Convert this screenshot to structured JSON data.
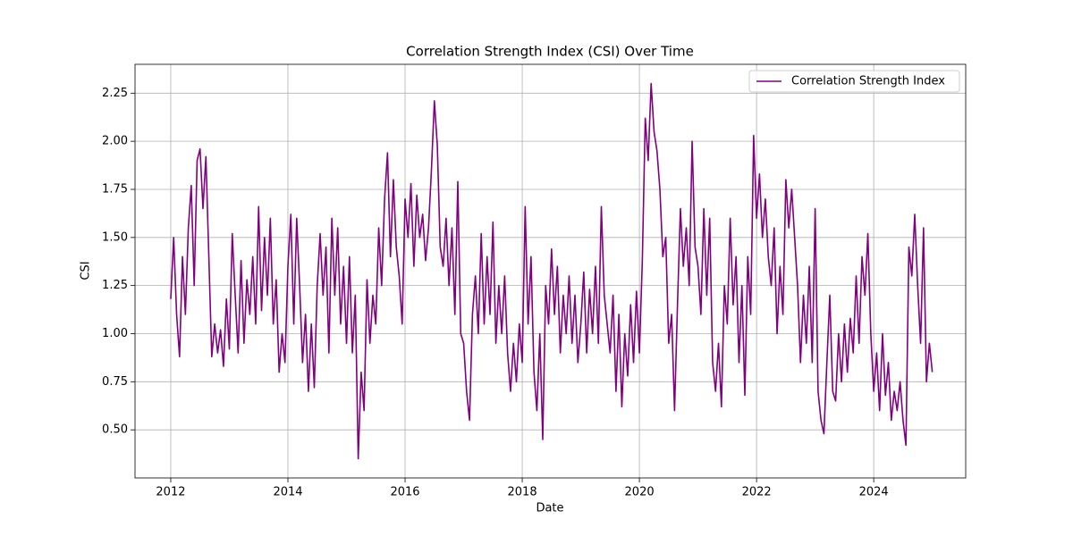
{
  "chart_data": {
    "type": "line",
    "title": "Correlation Strength Index (CSI) Over Time",
    "x_label": "Date",
    "y_label": "CSI",
    "xlim": [
      2011.39,
      2025.57
    ],
    "ylim": [
      0.25,
      2.4
    ],
    "xticks": [
      2012,
      2014,
      2016,
      2018,
      2020,
      2022,
      2024
    ],
    "yticks": [
      {
        "value": 0.5,
        "label": "0.50"
      },
      {
        "value": 0.75,
        "label": "0.75"
      },
      {
        "value": 1.0,
        "label": "1.00"
      },
      {
        "value": 1.25,
        "label": "1.25"
      },
      {
        "value": 1.5,
        "label": "1.50"
      },
      {
        "value": 1.75,
        "label": "1.75"
      },
      {
        "value": 2.0,
        "label": "2.00"
      },
      {
        "value": 2.25,
        "label": "2.25"
      }
    ],
    "grid": true,
    "legend": "upper right",
    "x": [
      2012.0,
      2012.05,
      2012.1,
      2012.15,
      2012.2,
      2012.25,
      2012.3,
      2012.35,
      2012.4,
      2012.45,
      2012.5,
      2012.55,
      2012.6,
      2012.65,
      2012.7,
      2012.75,
      2012.8,
      2012.85,
      2012.9,
      2012.95,
      2013.0,
      2013.05,
      2013.1,
      2013.15,
      2013.2,
      2013.25,
      2013.3,
      2013.35,
      2013.4,
      2013.45,
      2013.5,
      2013.55,
      2013.6,
      2013.65,
      2013.7,
      2013.75,
      2013.8,
      2013.85,
      2013.9,
      2013.95,
      2014.0,
      2014.05,
      2014.1,
      2014.15,
      2014.2,
      2014.25,
      2014.3,
      2014.35,
      2014.4,
      2014.45,
      2014.5,
      2014.55,
      2014.6,
      2014.65,
      2014.7,
      2014.75,
      2014.8,
      2014.85,
      2014.9,
      2014.95,
      2015.0,
      2015.05,
      2015.1,
      2015.15,
      2015.2,
      2015.25,
      2015.3,
      2015.35,
      2015.4,
      2015.45,
      2015.5,
      2015.55,
      2015.6,
      2015.65,
      2015.7,
      2015.75,
      2015.8,
      2015.85,
      2015.9,
      2015.95,
      2016.0,
      2016.05,
      2016.1,
      2016.15,
      2016.2,
      2016.25,
      2016.3,
      2016.35,
      2016.4,
      2016.45,
      2016.5,
      2016.55,
      2016.6,
      2016.65,
      2016.7,
      2016.75,
      2016.8,
      2016.85,
      2016.9,
      2016.95,
      2017.0,
      2017.05,
      2017.1,
      2017.15,
      2017.2,
      2017.25,
      2017.3,
      2017.35,
      2017.4,
      2017.45,
      2017.5,
      2017.55,
      2017.6,
      2017.65,
      2017.7,
      2017.75,
      2017.8,
      2017.85,
      2017.9,
      2017.95,
      2018.0,
      2018.05,
      2018.1,
      2018.15,
      2018.2,
      2018.25,
      2018.3,
      2018.35,
      2018.4,
      2018.45,
      2018.5,
      2018.55,
      2018.6,
      2018.65,
      2018.7,
      2018.75,
      2018.8,
      2018.85,
      2018.9,
      2018.95,
      2019.0,
      2019.05,
      2019.1,
      2019.15,
      2019.2,
      2019.25,
      2019.3,
      2019.35,
      2019.4,
      2019.45,
      2019.5,
      2019.55,
      2019.6,
      2019.65,
      2019.7,
      2019.75,
      2019.8,
      2019.85,
      2019.9,
      2019.95,
      2020.0,
      2020.05,
      2020.1,
      2020.15,
      2020.2,
      2020.25,
      2020.3,
      2020.35,
      2020.4,
      2020.45,
      2020.5,
      2020.55,
      2020.6,
      2020.65,
      2020.7,
      2020.75,
      2020.8,
      2020.85,
      2020.9,
      2020.95,
      2021.0,
      2021.05,
      2021.1,
      2021.15,
      2021.2,
      2021.25,
      2021.3,
      2021.35,
      2021.4,
      2021.45,
      2021.5,
      2021.55,
      2021.6,
      2021.65,
      2021.7,
      2021.75,
      2021.8,
      2021.85,
      2021.9,
      2021.95,
      2022.0,
      2022.05,
      2022.1,
      2022.15,
      2022.2,
      2022.25,
      2022.3,
      2022.35,
      2022.4,
      2022.45,
      2022.5,
      2022.55,
      2022.6,
      2022.65,
      2022.7,
      2022.75,
      2022.8,
      2022.85,
      2022.9,
      2022.95,
      2023.0,
      2023.05,
      2023.1,
      2023.15,
      2023.2,
      2023.25,
      2023.3,
      2023.35,
      2023.4,
      2023.45,
      2023.5,
      2023.55,
      2023.6,
      2023.65,
      2023.7,
      2023.75,
      2023.8,
      2023.85,
      2023.9,
      2023.95,
      2024.0,
      2024.05,
      2024.1,
      2024.15,
      2024.2,
      2024.25,
      2024.3,
      2024.35,
      2024.4,
      2024.45,
      2024.5,
      2024.55,
      2024.6,
      2024.65,
      2024.7,
      2024.75,
      2024.8,
      2024.85,
      2024.9,
      2024.95,
      2025.0
    ],
    "series": [
      {
        "name": "Correlation Strength Index",
        "color": "#800080",
        "values": [
          1.18,
          1.5,
          1.1,
          0.88,
          1.4,
          1.1,
          1.55,
          1.77,
          1.25,
          1.9,
          1.96,
          1.65,
          1.92,
          1.4,
          0.88,
          1.05,
          0.9,
          1.02,
          0.83,
          1.18,
          0.92,
          1.52,
          1.2,
          0.9,
          1.38,
          0.95,
          1.28,
          1.1,
          1.4,
          1.05,
          1.66,
          1.12,
          1.5,
          1.2,
          1.6,
          1.05,
          1.28,
          0.8,
          1.0,
          0.85,
          1.35,
          1.62,
          1.05,
          1.6,
          1.25,
          0.85,
          1.1,
          0.7,
          1.05,
          0.72,
          1.25,
          1.52,
          1.2,
          1.45,
          0.9,
          1.6,
          1.2,
          1.55,
          1.05,
          1.35,
          0.95,
          1.4,
          0.9,
          1.2,
          0.35,
          0.8,
          0.6,
          1.28,
          0.95,
          1.2,
          1.05,
          1.55,
          1.25,
          1.7,
          1.94,
          1.4,
          1.8,
          1.45,
          1.3,
          1.05,
          1.7,
          1.5,
          1.78,
          1.35,
          1.72,
          1.5,
          1.62,
          1.38,
          1.55,
          1.85,
          2.21,
          1.98,
          1.45,
          1.35,
          1.6,
          1.25,
          1.55,
          1.1,
          1.79,
          1.0,
          0.95,
          0.7,
          0.55,
          1.1,
          1.3,
          1.0,
          1.52,
          1.05,
          1.4,
          1.1,
          1.58,
          0.95,
          1.25,
          1.0,
          1.3,
          0.9,
          0.7,
          0.95,
          0.75,
          1.05,
          0.85,
          1.66,
          1.05,
          1.4,
          0.8,
          0.6,
          1.0,
          0.45,
          1.25,
          1.05,
          1.44,
          1.1,
          1.35,
          0.9,
          1.2,
          1.0,
          1.3,
          0.95,
          1.2,
          0.85,
          1.05,
          1.32,
          0.9,
          1.23,
          1.0,
          1.35,
          0.95,
          1.66,
          1.2,
          1.05,
          0.9,
          1.2,
          0.7,
          1.1,
          0.62,
          1.0,
          0.78,
          1.15,
          0.85,
          1.22,
          0.9,
          1.38,
          2.12,
          1.9,
          2.3,
          2.05,
          1.95,
          1.75,
          1.4,
          1.5,
          0.95,
          1.1,
          0.6,
          1.15,
          1.65,
          1.35,
          1.55,
          1.25,
          2.0,
          1.45,
          1.35,
          1.1,
          1.65,
          1.2,
          1.6,
          0.85,
          0.7,
          0.95,
          0.62,
          1.25,
          1.05,
          1.6,
          1.15,
          1.4,
          0.85,
          1.25,
          0.68,
          1.4,
          1.1,
          2.03,
          1.6,
          1.83,
          1.5,
          1.7,
          1.4,
          1.25,
          1.55,
          1.0,
          1.35,
          1.1,
          1.8,
          1.55,
          1.75,
          1.5,
          1.25,
          0.85,
          1.2,
          0.95,
          1.35,
          0.85,
          1.65,
          0.7,
          0.55,
          0.48,
          0.85,
          1.2,
          0.7,
          0.65,
          1.0,
          0.75,
          1.05,
          0.8,
          1.08,
          0.9,
          1.3,
          0.95,
          1.4,
          1.2,
          1.52,
          1.0,
          0.7,
          0.9,
          0.6,
          1.0,
          0.68,
          0.85,
          0.55,
          0.7,
          0.6,
          0.75,
          0.55,
          0.42,
          1.45,
          1.3,
          1.62,
          1.25,
          0.95,
          1.55,
          0.75,
          0.95,
          0.8
        ]
      }
    ]
  }
}
